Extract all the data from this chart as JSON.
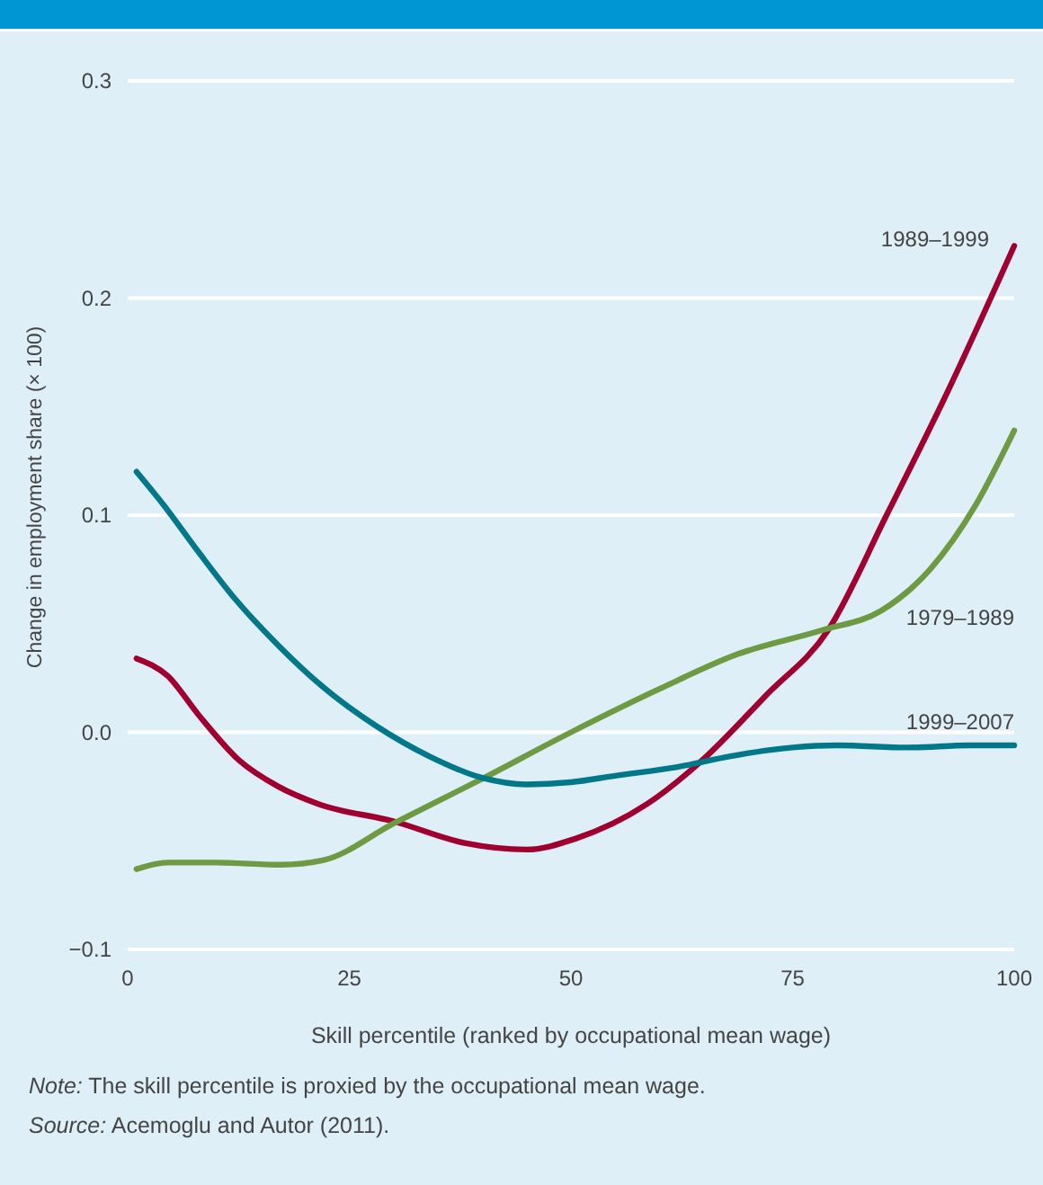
{
  "chart_data": {
    "type": "line",
    "xlabel": "Skill percentile (ranked by occupational mean wage)",
    "ylabel": "Change in employment share (× 100)",
    "xlim": [
      0,
      100
    ],
    "xticks": [
      0,
      25,
      50,
      75,
      100
    ],
    "ylim": [
      -0.1,
      0.3
    ],
    "yticks": [
      {
        "value": -0.1,
        "label": "−0.1"
      },
      {
        "value": 0,
        "label": "0.0"
      },
      {
        "value": 0.1,
        "label": "0.1"
      },
      {
        "value": 0.2,
        "label": "0.2"
      },
      {
        "value": 0.3,
        "label": "0.3"
      }
    ],
    "grid": "y",
    "legend": false,
    "line_style": "solid",
    "marker": "none",
    "series": [
      {
        "name": "1989–1999",
        "color": "#a0002f",
        "x": [
          1,
          4.5,
          8,
          12.6,
          17,
          21.5,
          30,
          38,
          45,
          50.5,
          58.6,
          65.3,
          72,
          79,
          85.6,
          92.5,
          100
        ],
        "values": [
          0.034,
          0.026,
          0.008,
          -0.013,
          -0.025,
          -0.033,
          -0.041,
          -0.051,
          -0.054,
          -0.049,
          -0.033,
          -0.011,
          0.017,
          0.047,
          0.1,
          0.157,
          0.224
        ]
      },
      {
        "name": "1979–1989",
        "color": "#6e9a44",
        "x": [
          1,
          4.5,
          10,
          17.4,
          22,
          30,
          39.7,
          50,
          60,
          68.8,
          78.3,
          85,
          90.5,
          95.7,
          100
        ],
        "values": [
          -0.063,
          -0.06,
          -0.06,
          -0.061,
          -0.059,
          -0.042,
          -0.022,
          0,
          0.02,
          0.036,
          0.047,
          0.056,
          0.075,
          0.105,
          0.139
        ]
      },
      {
        "name": "1999–2007",
        "color": "#00788a",
        "x": [
          1,
          4,
          8,
          12,
          17,
          22,
          28,
          34,
          40,
          45,
          50,
          55,
          62,
          68,
          75,
          80,
          88,
          95,
          100
        ],
        "values": [
          0.12,
          0.105,
          0.083,
          0.062,
          0.04,
          0.021,
          0.003,
          -0.011,
          -0.021,
          -0.024,
          -0.023,
          -0.02,
          -0.016,
          -0.011,
          -0.007,
          -0.006,
          -0.007,
          -0.006,
          -0.006
        ]
      }
    ],
    "annotations": [
      "Note: The skill percentile is proxied by the occupational mean wage.",
      "Source: Acemoglu and Autor (2011)."
    ]
  }
}
